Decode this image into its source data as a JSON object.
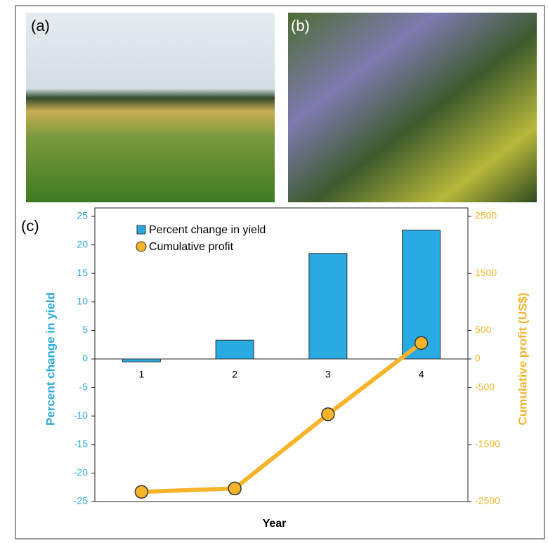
{
  "panel_labels": [
    "(a)",
    "(b)",
    "(c)"
  ],
  "chart_data": {
    "type": "bar-line",
    "x_label": "Year",
    "y_label": "Percent change in yield",
    "y2_label": "Cumulative  profit (US$)",
    "categories": [
      "1",
      "2",
      "3",
      "4"
    ],
    "series": [
      {
        "name": "Percent change in yield",
        "type": "bar",
        "color": "#2aaae2",
        "values": [
          -0.5,
          3.3,
          18.5,
          22.6
        ]
      },
      {
        "name": "Cumulative profit",
        "type": "line",
        "axis": "y2",
        "color": "#f6b42b",
        "values": [
          -2330,
          -2270,
          -970,
          280
        ]
      }
    ],
    "ylim": [
      -25,
      25
    ],
    "yticks": [
      -25,
      -20,
      -15,
      -10,
      -5,
      0,
      5,
      10,
      15,
      20,
      25
    ],
    "y2lim": [
      -2500,
      2500
    ],
    "y2ticks": [
      -2500,
      -1500,
      -500,
      0,
      500,
      1500,
      2500
    ],
    "legend": "upper-left"
  }
}
